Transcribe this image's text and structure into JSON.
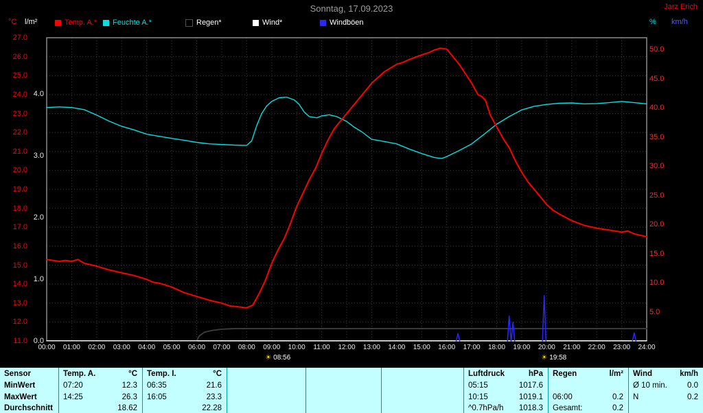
{
  "header": {
    "title": "Sonntag, 17.09.2023",
    "station": "Jarz Erich"
  },
  "legend": {
    "items": [
      {
        "id": "temp-a",
        "label": "Temp. A.*",
        "color": "#ff0000",
        "label_color": "#ff0000"
      },
      {
        "id": "feuchte-a",
        "label": "Feuchte A.*",
        "color": "#00e0e0",
        "label_color": "#00e0e0"
      },
      {
        "id": "regen",
        "label": "Regen*",
        "color": "#000000",
        "label_color": "#ffffff",
        "border": "#505050"
      },
      {
        "id": "wind",
        "label": "Wind*",
        "color": "#ffffff",
        "label_color": "#ffffff"
      },
      {
        "id": "windboeen",
        "label": "Windböen",
        "color": "#2828ff",
        "label_color": "#ffffff"
      }
    ]
  },
  "axes": {
    "left_temp": {
      "unit": "°C",
      "color": "#ff0000",
      "ticks": [
        "27.0",
        "26.0",
        "25.0",
        "24.0",
        "23.0",
        "22.0",
        "21.0",
        "20.0",
        "19.0",
        "18.0",
        "17.0",
        "16.0",
        "15.0",
        "14.0",
        "13.0",
        "12.0",
        "11.0"
      ]
    },
    "left_rain": {
      "unit": "l/m²",
      "color": "#ffffff",
      "ticks": [
        "4.0",
        "3.0",
        "2.0",
        "1.0",
        "0.0"
      ]
    },
    "right": {
      "unit_pct": "%",
      "unit_kmh": "km/h",
      "color": "#ff2a2a",
      "ticks": [
        "50.0",
        "45.0",
        "40.0",
        "35.0",
        "30.0",
        "25.0",
        "20.0",
        "15.0",
        "10.0",
        "5.0"
      ]
    },
    "x": {
      "ticks": [
        "00:00",
        "01:00",
        "02:00",
        "03:00",
        "04:00",
        "05:00",
        "06:00",
        "07:00",
        "08:00",
        "09:00",
        "10:00",
        "11:00",
        "12:00",
        "13:00",
        "14:00",
        "15:00",
        "16:00",
        "17:00",
        "18:00",
        "19:00",
        "20:00",
        "21:00",
        "22:00",
        "23:00",
        "24:00"
      ]
    }
  },
  "sun_markers": [
    {
      "time": "08:56",
      "hour": 8.93
    },
    {
      "time": "19:58",
      "hour": 19.97
    }
  ],
  "chart_data": {
    "type": "line",
    "title": "Sonntag, 17.09.2023",
    "x_unit": "hour",
    "x_range": [
      0,
      24
    ],
    "grid": true,
    "series": [
      {
        "name": "Feuchte A.",
        "unit": "%",
        "color": "#00e0e0",
        "width": 1.4,
        "axis": {
          "min": 0,
          "max": 100
        },
        "points": [
          [
            0,
            77
          ],
          [
            0.5,
            77.2
          ],
          [
            1,
            77
          ],
          [
            1.5,
            76.3
          ],
          [
            2,
            74.5
          ],
          [
            2.25,
            73.5
          ],
          [
            2.5,
            72.5
          ],
          [
            3,
            70.8
          ],
          [
            3.5,
            69.6
          ],
          [
            4,
            68.2
          ],
          [
            4.5,
            67.5
          ],
          [
            5,
            66.8
          ],
          [
            5.5,
            66.2
          ],
          [
            6,
            65.5
          ],
          [
            6.5,
            65
          ],
          [
            7,
            64.8
          ],
          [
            7.5,
            64.6
          ],
          [
            8,
            64.5
          ],
          [
            8.2,
            66
          ],
          [
            8.4,
            71
          ],
          [
            8.6,
            75
          ],
          [
            8.8,
            77.5
          ],
          [
            9,
            79
          ],
          [
            9.3,
            80.2
          ],
          [
            9.6,
            80.4
          ],
          [
            9.9,
            79.5
          ],
          [
            10.1,
            78
          ],
          [
            10.3,
            75.5
          ],
          [
            10.5,
            74
          ],
          [
            10.8,
            73.6
          ],
          [
            11,
            74.2
          ],
          [
            11.3,
            74.6
          ],
          [
            11.6,
            74
          ],
          [
            12,
            72.4
          ],
          [
            12.3,
            70.5
          ],
          [
            12.6,
            69
          ],
          [
            13,
            66.5
          ],
          [
            13.5,
            65.8
          ],
          [
            14,
            65
          ],
          [
            14.5,
            63.3
          ],
          [
            15,
            61.8
          ],
          [
            15.5,
            60.5
          ],
          [
            15.8,
            60.2
          ],
          [
            16,
            60.8
          ],
          [
            16.5,
            62.8
          ],
          [
            17,
            65
          ],
          [
            17.5,
            68.2
          ],
          [
            18,
            71.5
          ],
          [
            18.5,
            74
          ],
          [
            19,
            76.2
          ],
          [
            19.5,
            77.4
          ],
          [
            20,
            78
          ],
          [
            20.5,
            78.4
          ],
          [
            21,
            78.5
          ],
          [
            21.5,
            78.2
          ],
          [
            22,
            78.3
          ],
          [
            22.5,
            78.6
          ],
          [
            23,
            79
          ],
          [
            23.5,
            78.6
          ],
          [
            24,
            78.2
          ]
        ]
      },
      {
        "name": "Regen",
        "unit": "l/m²",
        "color": "#3a3a3a",
        "width": 2,
        "axis": {
          "min": 0,
          "max": 4.911
        },
        "points": [
          [
            0,
            0
          ],
          [
            6,
            0
          ],
          [
            6.1,
            0.08
          ],
          [
            6.3,
            0.14
          ],
          [
            6.6,
            0.17
          ],
          [
            7,
            0.19
          ],
          [
            7.5,
            0.2
          ],
          [
            24,
            0.2
          ]
        ]
      },
      {
        "name": "Temp. A.",
        "unit": "°C",
        "color": "#ff0000",
        "width": 2,
        "axis": {
          "min": 11,
          "max": 27
        },
        "points": [
          [
            0,
            15.3
          ],
          [
            0.5,
            15.2
          ],
          [
            0.75,
            15.25
          ],
          [
            1,
            15.2
          ],
          [
            1.25,
            15.3
          ],
          [
            1.5,
            15.1
          ],
          [
            2,
            14.95
          ],
          [
            2.5,
            14.75
          ],
          [
            3,
            14.6
          ],
          [
            3.5,
            14.45
          ],
          [
            4,
            14.25
          ],
          [
            4.25,
            14.1
          ],
          [
            4.5,
            14.05
          ],
          [
            5,
            13.85
          ],
          [
            5.25,
            13.7
          ],
          [
            5.5,
            13.55
          ],
          [
            6,
            13.35
          ],
          [
            6.5,
            13.15
          ],
          [
            7,
            13.0
          ],
          [
            7.33,
            12.85
          ],
          [
            7.67,
            12.8
          ],
          [
            8,
            12.75
          ],
          [
            8.25,
            12.9
          ],
          [
            8.5,
            13.5
          ],
          [
            8.75,
            14.2
          ],
          [
            9,
            15.1
          ],
          [
            9.25,
            15.8
          ],
          [
            9.5,
            16.4
          ],
          [
            9.75,
            17.2
          ],
          [
            10,
            18.1
          ],
          [
            10.25,
            18.8
          ],
          [
            10.5,
            19.5
          ],
          [
            10.75,
            20.1
          ],
          [
            11,
            20.9
          ],
          [
            11.25,
            21.6
          ],
          [
            11.5,
            22.2
          ],
          [
            11.75,
            22.6
          ],
          [
            12,
            23.0
          ],
          [
            12.25,
            23.4
          ],
          [
            12.5,
            23.8
          ],
          [
            12.75,
            24.2
          ],
          [
            13,
            24.6
          ],
          [
            13.25,
            24.9
          ],
          [
            13.5,
            25.2
          ],
          [
            13.75,
            25.4
          ],
          [
            14,
            25.6
          ],
          [
            14.25,
            25.7
          ],
          [
            14.5,
            25.85
          ],
          [
            15,
            26.1
          ],
          [
            15.25,
            26.2
          ],
          [
            15.5,
            26.35
          ],
          [
            15.75,
            26.45
          ],
          [
            16,
            26.4
          ],
          [
            16.25,
            26.0
          ],
          [
            16.5,
            25.6
          ],
          [
            16.75,
            25.1
          ],
          [
            17,
            24.6
          ],
          [
            17.25,
            24.0
          ],
          [
            17.4,
            23.9
          ],
          [
            17.55,
            23.7
          ],
          [
            17.75,
            22.9
          ],
          [
            18,
            22.3
          ],
          [
            18.25,
            21.7
          ],
          [
            18.5,
            21.2
          ],
          [
            18.75,
            20.5
          ],
          [
            19,
            19.9
          ],
          [
            19.25,
            19.4
          ],
          [
            19.5,
            19.0
          ],
          [
            19.75,
            18.6
          ],
          [
            20,
            18.2
          ],
          [
            20.25,
            17.9
          ],
          [
            20.5,
            17.7
          ],
          [
            21,
            17.35
          ],
          [
            21.5,
            17.1
          ],
          [
            22,
            16.95
          ],
          [
            22.5,
            16.85
          ],
          [
            23,
            16.75
          ],
          [
            23.25,
            16.8
          ],
          [
            23.5,
            16.65
          ],
          [
            24,
            16.5
          ]
        ]
      },
      {
        "name": "Wind",
        "unit": "km/h",
        "color": "#ffffff",
        "width": 1.2,
        "axis": {
          "min": 0,
          "max": 52
        },
        "points": [
          [
            0,
            0.05
          ],
          [
            24,
            0.05
          ]
        ]
      },
      {
        "name": "Windböen",
        "unit": "km/h",
        "color": "#2828ff",
        "width": 1.5,
        "axis": {
          "min": 0,
          "max": 52
        },
        "spikes": [
          {
            "hour": 16.45,
            "peak": 1.3
          },
          {
            "hour": 18.5,
            "peak": 4.3
          },
          {
            "hour": 18.65,
            "peak": 3.2
          },
          {
            "hour": 19.9,
            "peak": 7.8
          },
          {
            "hour": 23.5,
            "peak": 1.4
          }
        ]
      }
    ]
  },
  "table": {
    "row_labels": [
      "Sensor",
      "MinWert",
      "MaxWert",
      "Durchschnitt"
    ],
    "groups": [
      {
        "name": "Temp. A.",
        "unit": "°C",
        "rows": [
          [
            "07:20",
            "12.3"
          ],
          [
            "14:25",
            "26.3"
          ],
          [
            "",
            "18.62"
          ]
        ]
      },
      {
        "name": "Temp. I.",
        "unit": "°C",
        "rows": [
          [
            "06:35",
            "21.6"
          ],
          [
            "16:05",
            "23.3"
          ],
          [
            "",
            "22.28"
          ]
        ]
      },
      {
        "name": "",
        "unit": "",
        "rows": [
          [
            "",
            ""
          ],
          [
            "",
            ""
          ],
          [
            "",
            ""
          ]
        ]
      },
      {
        "name": "",
        "unit": "",
        "rows": [
          [
            "",
            ""
          ],
          [
            "",
            ""
          ],
          [
            "",
            ""
          ]
        ]
      },
      {
        "name": "",
        "unit": "",
        "rows": [
          [
            "",
            ""
          ],
          [
            "",
            ""
          ],
          [
            "",
            ""
          ]
        ]
      },
      {
        "name": "Luftdruck",
        "unit": "hPa",
        "rows": [
          [
            "05:15",
            "1017.6"
          ],
          [
            "10:15",
            "1019.1"
          ],
          [
            "^0.7hPa/h",
            "1018.3"
          ]
        ]
      },
      {
        "name": "Regen",
        "unit": "l/m²",
        "rows": [
          [
            "",
            ""
          ],
          [
            "06:00",
            "0.2"
          ],
          [
            "Gesamt:",
            "0.2"
          ]
        ]
      },
      {
        "name": "Wind",
        "unit": "km/h",
        "rows": [
          [
            "Ø 10 min.",
            "0.0"
          ],
          [
            "N",
            "0.2"
          ],
          [
            "",
            ""
          ]
        ]
      }
    ]
  }
}
